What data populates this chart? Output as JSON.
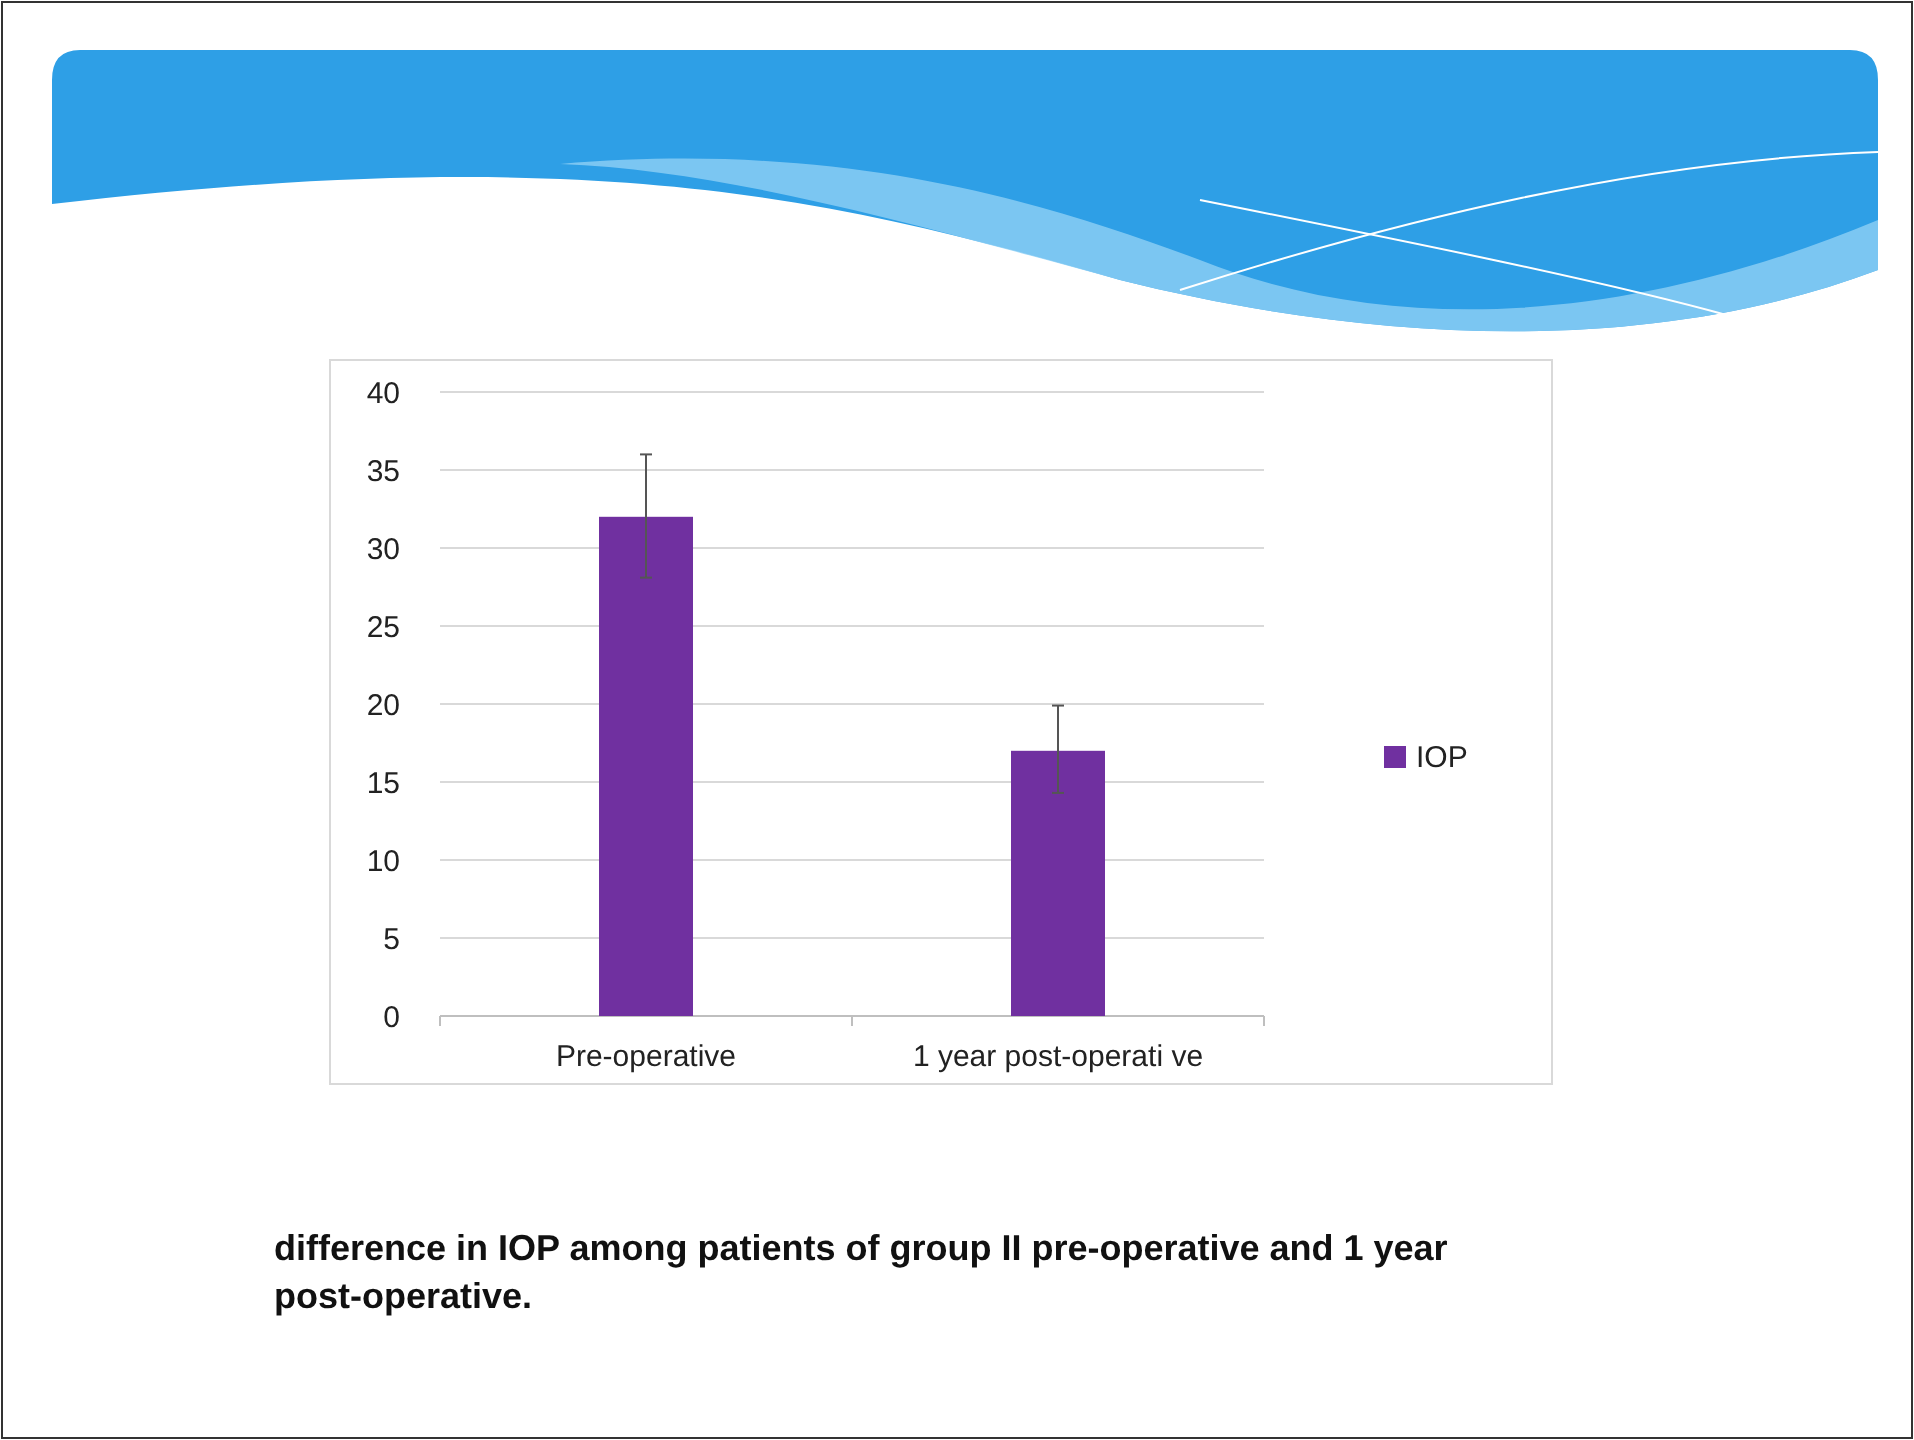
{
  "chart_data": {
    "type": "bar",
    "categories": [
      "Pre-operative",
      "1 year post-operati ve"
    ],
    "series": [
      {
        "name": "IOP",
        "color": "#7030a0",
        "values": [
          32,
          17
        ],
        "errors": [
          [
            28.1,
            36
          ],
          [
            14.3,
            19.9
          ]
        ]
      }
    ],
    "ylim": [
      0,
      40
    ],
    "yticks": [
      0,
      5,
      10,
      15,
      20,
      25,
      30,
      35,
      40
    ],
    "grid": "y",
    "legend": "right",
    "annotations": [
      "difference in IOP among patients of group II pre-operative and 1 year post-operative."
    ]
  }
}
